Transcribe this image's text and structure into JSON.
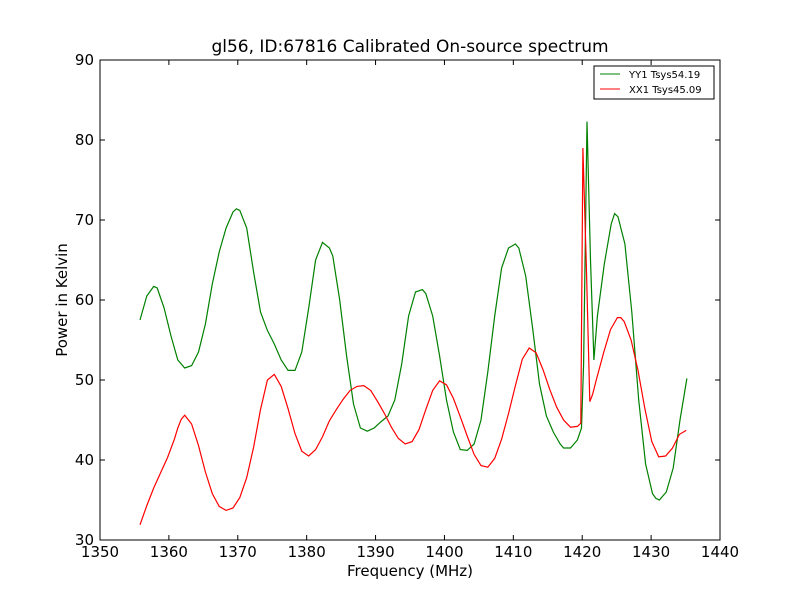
{
  "chart_data": {
    "type": "line",
    "title": "gl56, ID:67816 Calibrated On-source spectrum",
    "xlabel": "Frequency (MHz)",
    "ylabel": "Power in Kelvin",
    "xlim": [
      1350,
      1440
    ],
    "ylim": [
      30,
      90
    ],
    "xticks": [
      "1350",
      "1360",
      "1370",
      "1380",
      "1390",
      "1400",
      "1410",
      "1420",
      "1430",
      "1440"
    ],
    "yticks": [
      "30",
      "40",
      "50",
      "60",
      "70",
      "80",
      "90"
    ],
    "grid": false,
    "legend_position": "top-right",
    "series": [
      {
        "name": "YY1 Tsys54.19",
        "color": "#008000",
        "x": [
          1355.8,
          1356.8,
          1357.8,
          1358.3,
          1359.3,
          1360.3,
          1361.3,
          1362.3,
          1363.3,
          1364.3,
          1365.3,
          1366.3,
          1367.3,
          1368.3,
          1369.3,
          1369.8,
          1370.3,
          1371.3,
          1372.3,
          1373.3,
          1374.3,
          1375.3,
          1376.3,
          1377.3,
          1378.3,
          1379.3,
          1380.3,
          1381.3,
          1382.3,
          1383.3,
          1383.8,
          1384.8,
          1385.8,
          1386.8,
          1387.8,
          1388.8,
          1389.8,
          1390.8,
          1391.8,
          1392.8,
          1393.8,
          1394.8,
          1395.8,
          1396.8,
          1397.3,
          1398.3,
          1399.3,
          1400.3,
          1401.3,
          1402.3,
          1403.3,
          1404.3,
          1405.3,
          1406.3,
          1407.3,
          1408.3,
          1409.3,
          1410.3,
          1410.8,
          1411.8,
          1412.8,
          1413.8,
          1414.8,
          1415.8,
          1416.8,
          1417.3,
          1418.3,
          1419.3,
          1419.9,
          1420.2,
          1420.7,
          1421.2,
          1421.7,
          1422.2,
          1423.2,
          1424.2,
          1424.7,
          1425.2,
          1426.2,
          1427.2,
          1428.2,
          1429.2,
          1430.2,
          1430.7,
          1431.2,
          1432.2,
          1433.2,
          1434.2,
          1435.2
        ],
        "values": [
          57.5,
          60.5,
          61.7,
          61.5,
          59.0,
          55.5,
          52.5,
          51.5,
          51.8,
          53.5,
          57.0,
          62.0,
          66.0,
          69.0,
          71.0,
          71.4,
          71.2,
          69.0,
          63.5,
          58.5,
          56.2,
          54.5,
          52.5,
          51.2,
          51.2,
          53.5,
          59.0,
          65.0,
          67.2,
          66.5,
          65.5,
          60.0,
          53.0,
          47.0,
          44.0,
          43.6,
          44.0,
          44.8,
          45.5,
          47.5,
          52.0,
          58.0,
          61.0,
          61.3,
          60.8,
          58.0,
          53.0,
          47.5,
          43.5,
          41.3,
          41.2,
          42.0,
          45.0,
          51.0,
          58.0,
          64.0,
          66.5,
          67.0,
          66.5,
          63.0,
          56.5,
          49.5,
          45.5,
          43.5,
          42.0,
          41.5,
          41.5,
          42.5,
          44.0,
          52.0,
          82.3,
          65.0,
          52.5,
          58.0,
          64.5,
          69.5,
          70.8,
          70.4,
          67.0,
          58.5,
          47.5,
          39.5,
          35.8,
          35.2,
          35.0,
          36.0,
          39.0,
          45.0,
          50.2
        ]
      },
      {
        "name": "XX1 Tsys45.09",
        "color": "#ff0000",
        "x": [
          1355.8,
          1356.8,
          1357.8,
          1358.8,
          1359.8,
          1360.8,
          1361.3,
          1361.8,
          1362.3,
          1363.3,
          1364.3,
          1365.3,
          1366.3,
          1367.3,
          1368.3,
          1369.3,
          1370.3,
          1371.3,
          1372.3,
          1373.3,
          1374.3,
          1375.3,
          1376.3,
          1377.3,
          1378.3,
          1379.3,
          1380.3,
          1381.3,
          1382.3,
          1383.3,
          1384.3,
          1385.3,
          1386.3,
          1387.3,
          1388.3,
          1389.3,
          1390.3,
          1391.3,
          1392.3,
          1393.3,
          1394.3,
          1395.3,
          1396.3,
          1397.3,
          1398.3,
          1399.3,
          1400.3,
          1401.3,
          1402.3,
          1403.3,
          1404.3,
          1405.3,
          1406.3,
          1407.3,
          1408.3,
          1409.3,
          1410.3,
          1411.3,
          1412.3,
          1413.3,
          1414.3,
          1415.3,
          1416.3,
          1417.3,
          1418.3,
          1419.3,
          1419.8,
          1420.1,
          1420.6,
          1421.1,
          1421.5,
          1422.1,
          1423.1,
          1424.1,
          1425.1,
          1425.6,
          1426.1,
          1427.1,
          1428.1,
          1429.1,
          1430.1,
          1431.1,
          1432.1,
          1433.1,
          1434.1,
          1435.1
        ],
        "values": [
          31.9,
          34.3,
          36.5,
          38.4,
          40.3,
          42.6,
          44.0,
          45.1,
          45.6,
          44.5,
          41.8,
          38.5,
          35.8,
          34.2,
          33.7,
          34.0,
          35.3,
          37.8,
          41.6,
          46.3,
          50.0,
          50.7,
          49.2,
          46.4,
          43.3,
          41.1,
          40.5,
          41.3,
          42.9,
          44.9,
          46.3,
          47.6,
          48.7,
          49.2,
          49.3,
          48.7,
          47.3,
          45.8,
          44.1,
          42.7,
          42.0,
          42.3,
          43.8,
          46.3,
          48.7,
          49.9,
          49.4,
          47.7,
          45.4,
          43.0,
          40.7,
          39.3,
          39.1,
          40.2,
          42.6,
          45.8,
          49.3,
          52.6,
          54.0,
          53.4,
          51.3,
          48.8,
          46.6,
          45.0,
          44.1,
          44.2,
          44.6,
          79.0,
          64.0,
          47.3,
          48.2,
          50.2,
          53.4,
          56.3,
          57.8,
          57.8,
          57.3,
          55.0,
          51.2,
          46.4,
          42.3,
          40.4,
          40.5,
          41.5,
          43.2,
          43.7
        ]
      }
    ]
  }
}
